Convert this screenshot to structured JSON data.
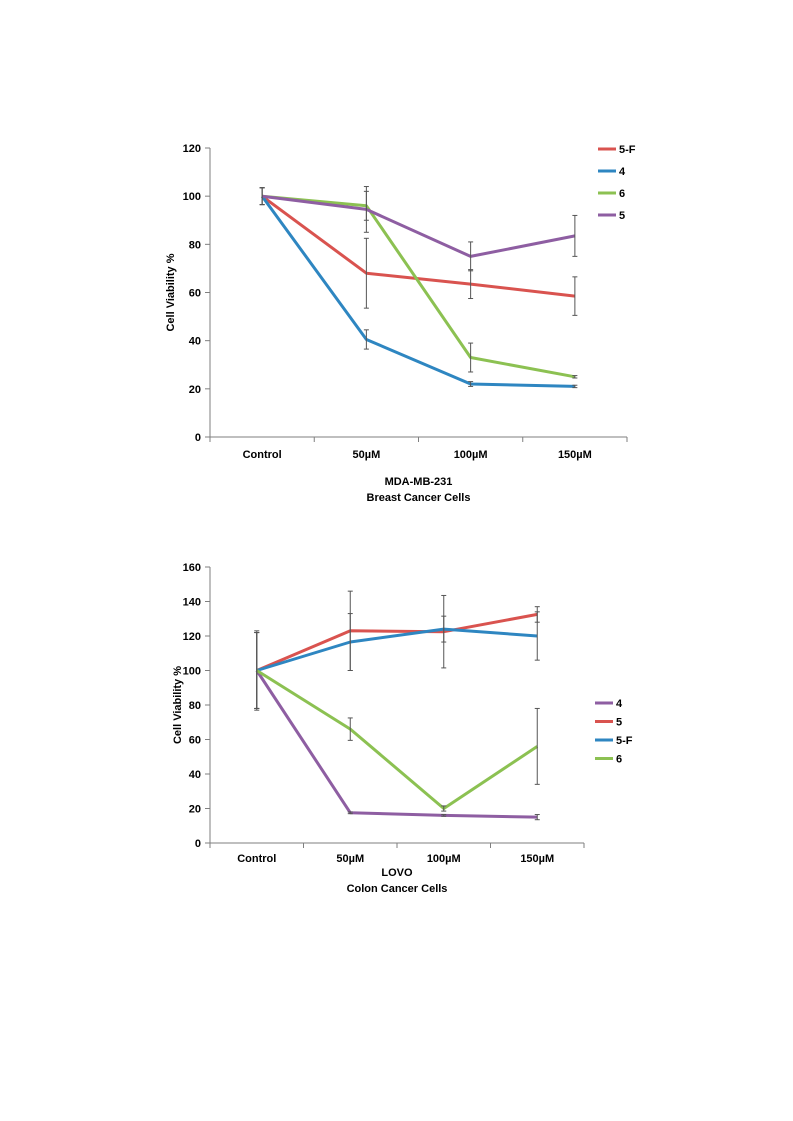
{
  "chart_data": [
    {
      "type": "line",
      "categories": [
        "Control",
        "50µM",
        "100µM",
        "150µM"
      ],
      "series": [
        {
          "name": "5-F",
          "color": "#d9534f",
          "values": [
            100,
            68,
            63.5,
            58.5
          ],
          "errors": [
            3.5,
            14.5,
            6,
            8
          ]
        },
        {
          "name": "4",
          "color": "#2e86c1",
          "values": [
            100,
            40.5,
            22,
            21
          ],
          "errors": [
            3.5,
            4,
            1,
            0.5
          ]
        },
        {
          "name": "6",
          "color": "#8cc152",
          "values": [
            100,
            96,
            33,
            25
          ],
          "errors": [
            3.5,
            6,
            6,
            0.5
          ]
        },
        {
          "name": "5",
          "color": "#8e5ea2",
          "values": [
            100,
            94.5,
            75,
            83.5
          ],
          "errors": [
            3.5,
            9.5,
            6,
            8.5
          ]
        }
      ],
      "ylabel": "Cell Viability %",
      "xlabel_lines": [
        "MDA-MB-231",
        "Breast Cancer Cells"
      ],
      "ylim": [
        0,
        120
      ],
      "yticks": [
        "0",
        "20",
        "40",
        "60",
        "80",
        "100",
        "120"
      ],
      "grid": false,
      "legend_position": "right"
    },
    {
      "type": "line",
      "categories": [
        "Control",
        "50µM",
        "100µM",
        "150µM"
      ],
      "series": [
        {
          "name": "4",
          "color": "#8e5ea2",
          "values": [
            100,
            17.5,
            16,
            15
          ],
          "errors": [
            23,
            0.5,
            0.5,
            1.5
          ]
        },
        {
          "name": "5",
          "color": "#d9534f",
          "values": [
            100,
            123,
            122.5,
            132.5
          ],
          "errors": [
            22,
            23,
            21,
            4.5
          ]
        },
        {
          "name": "5-F",
          "color": "#2e86c1",
          "values": [
            100,
            116.5,
            124,
            120
          ],
          "errors": [
            22,
            16.5,
            7.5,
            14
          ]
        },
        {
          "name": "6",
          "color": "#8cc152",
          "values": [
            100,
            66,
            20,
            56
          ],
          "errors": [
            22,
            6.5,
            1.5,
            22
          ]
        }
      ],
      "ylabel": "Cell Viability %",
      "xlabel_lines": [
        "LOVO",
        "Colon Cancer Cells"
      ],
      "ylim": [
        0,
        160
      ],
      "yticks": [
        "0",
        "20",
        "40",
        "60",
        "80",
        "100",
        "120",
        "140",
        "160"
      ],
      "grid": false,
      "legend_position": "right"
    }
  ]
}
